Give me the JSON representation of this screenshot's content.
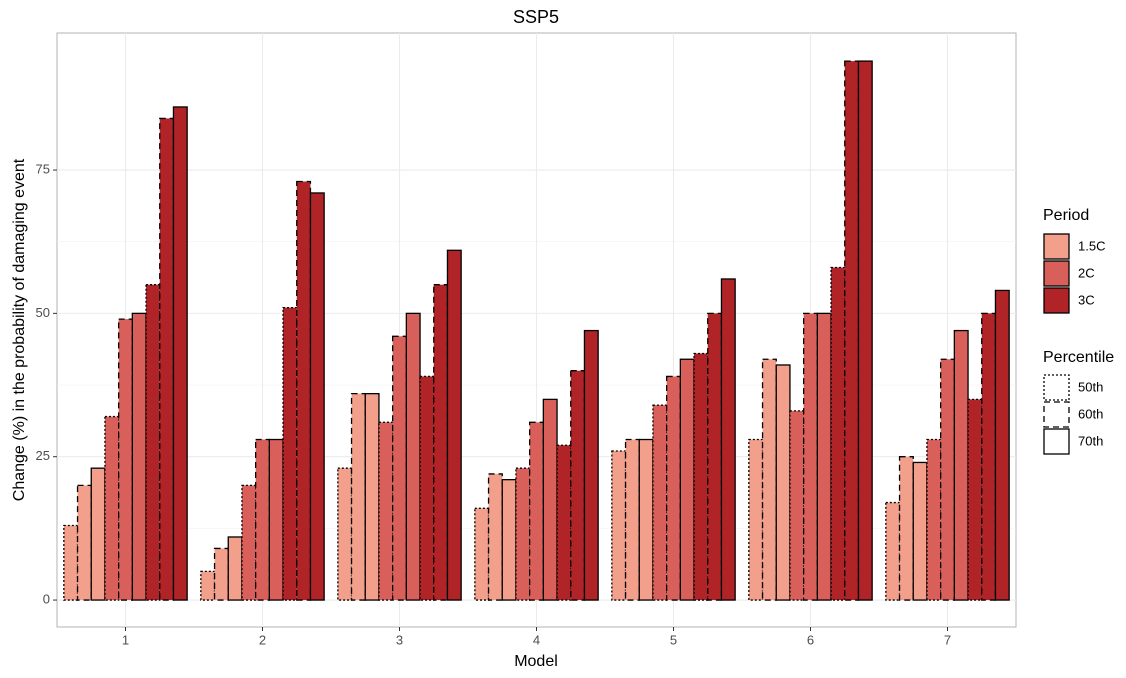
{
  "chart_data": {
    "type": "grouped_bar",
    "title": "SSP5",
    "x_label": "Model",
    "y_label": "Change (%) in the probability of damaging event",
    "categories": [
      "1",
      "2",
      "3",
      "4",
      "5",
      "6",
      "7"
    ],
    "ylim": [
      -4.7,
      98.9
    ],
    "yticks": [
      0,
      25,
      50,
      75
    ],
    "grid": true,
    "legend_position": "right",
    "period_legend_title": "Period",
    "percentile_legend_title": "Percentile",
    "percentiles": [
      {
        "name": "50th",
        "linetype": "dotted"
      },
      {
        "name": "60th",
        "linetype": "dashed"
      },
      {
        "name": "70th",
        "linetype": "solid"
      }
    ],
    "series": [
      {
        "name": "1.5C",
        "color": "#f29f8b",
        "values": [
          [
            13,
            5,
            23,
            16,
            26,
            28,
            17
          ],
          [
            20,
            9,
            36,
            22,
            28,
            42,
            25
          ],
          [
            23,
            11,
            36,
            21,
            28,
            41,
            24
          ]
        ]
      },
      {
        "name": "2C",
        "color": "#d9605a",
        "values": [
          [
            32,
            20,
            31,
            23,
            34,
            33,
            28
          ],
          [
            49,
            28,
            46,
            31,
            39,
            50,
            42
          ],
          [
            50,
            28,
            50,
            35,
            42,
            50,
            47
          ]
        ]
      },
      {
        "name": "3C",
        "color": "#b02428",
        "values": [
          [
            55,
            51,
            39,
            27,
            43,
            58,
            35
          ],
          [
            84,
            73,
            55,
            40,
            50,
            94,
            50
          ],
          [
            86,
            71,
            61,
            47,
            56,
            94,
            54
          ]
        ]
      }
    ]
  }
}
